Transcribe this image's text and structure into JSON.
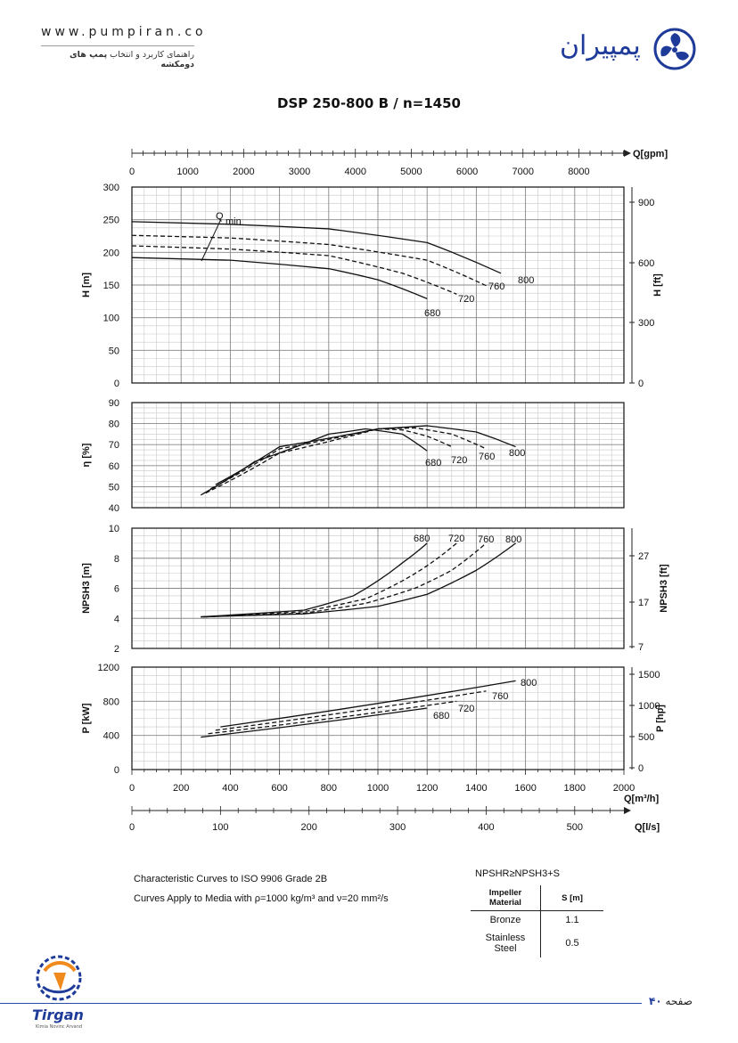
{
  "header": {
    "website": "www.pumpiran.co",
    "subtitle_prefix": "راهنمای کاربرد و انتخاب",
    "subtitle_bold": "پمپ های دومکشه",
    "brand": "پمپیران"
  },
  "title": "DSP 250-800 B / n=1450",
  "chart_data": {
    "type": "line",
    "qmin_label": "Q",
    "qmin_sub": "min",
    "x_axes": [
      {
        "label": "Q[gpm]",
        "ticks": [
          0,
          1000,
          2000,
          3000,
          4000,
          5000,
          6000,
          7000,
          8000
        ]
      },
      {
        "label": "Q[m³/h]",
        "ticks": [
          0,
          200,
          400,
          600,
          800,
          1000,
          1200,
          1400,
          1600,
          1800,
          2000
        ],
        "xlim": [
          0,
          2000
        ]
      },
      {
        "label": "Q[l/s]",
        "ticks": [
          0,
          100,
          200,
          300,
          400,
          500
        ]
      }
    ],
    "panels": [
      {
        "name": "head",
        "ylabel": "H [m]",
        "ylim": [
          0,
          300
        ],
        "yticks": [
          0,
          50,
          100,
          150,
          200,
          250,
          300
        ],
        "y2label": "H [ft]",
        "y2ticks": [
          0,
          300,
          600,
          900
        ],
        "series": [
          {
            "name": "800",
            "x": [
              0,
              400,
              800,
              1200,
              1500
            ],
            "y": [
              247,
              243,
              236,
              215,
              168
            ]
          },
          {
            "name": "760",
            "x": [
              0,
              400,
              800,
              1200,
              1440
            ],
            "y": [
              226,
              222,
              212,
              188,
              149
            ]
          },
          {
            "name": "720",
            "x": [
              0,
              400,
              800,
              1100,
              1320
            ],
            "y": [
              210,
              205,
              195,
              168,
              136
            ]
          },
          {
            "name": "680",
            "x": [
              0,
              400,
              800,
              1000,
              1200
            ],
            "y": [
              192,
              188,
              175,
              158,
              129
            ]
          }
        ]
      },
      {
        "name": "efficiency",
        "ylabel": "η [%]",
        "ylim": [
          40,
          90
        ],
        "yticks": [
          40,
          50,
          60,
          70,
          80,
          90
        ],
        "series": [
          {
            "name": "800",
            "x": [
              340,
              600,
              1000,
              1200,
              1400,
              1560
            ],
            "y": [
              51,
              69,
              77.5,
              79,
              76,
              69
            ]
          },
          {
            "name": "760",
            "x": [
              320,
              600,
              1000,
              1150,
              1300,
              1440
            ],
            "y": [
              49,
              68,
              77.5,
              78,
              75,
              68
            ]
          },
          {
            "name": "720",
            "x": [
              300,
              600,
              1000,
              1100,
              1200,
              1300
            ],
            "y": [
              47,
              66,
              77.5,
              77,
              74,
              69
            ]
          },
          {
            "name": "680",
            "x": [
              280,
              500,
              800,
              950,
              1100,
              1200
            ],
            "y": [
              46,
              62,
              75,
              77.5,
              75,
              67
            ]
          }
        ]
      },
      {
        "name": "npsh",
        "ylabel": "NPSH3 [m]",
        "ylim": [
          2,
          10
        ],
        "yticks": [
          2,
          4,
          6,
          8,
          10
        ],
        "y2label": "NPSH3 [ft]",
        "y2ticks": [
          7,
          17,
          27
        ],
        "series": [
          {
            "name": "800",
            "x": [
              280,
              700,
              1000,
              1200,
              1400,
              1560
            ],
            "y": [
              4.1,
              4.3,
              4.8,
              5.6,
              7.2,
              9
            ]
          },
          {
            "name": "760",
            "x": [
              290,
              700,
              950,
              1150,
              1300,
              1440
            ],
            "y": [
              4.1,
              4.35,
              5,
              6,
              7.2,
              9
            ]
          },
          {
            "name": "720",
            "x": [
              300,
              700,
              950,
              1100,
              1200,
              1320
            ],
            "y": [
              4.1,
              4.45,
              5.3,
              6.5,
              7.5,
              9
            ]
          },
          {
            "name": "680",
            "x": [
              280,
              700,
              900,
              1000,
              1100,
              1200
            ],
            "y": [
              4.1,
              4.55,
              5.5,
              6.5,
              7.7,
              9
            ]
          }
        ]
      },
      {
        "name": "power",
        "ylabel": "P [kW]",
        "ylim": [
          0,
          1200
        ],
        "yticks": [
          0,
          400,
          800,
          1200
        ],
        "y2label": "P [hp]",
        "y2ticks": [
          0,
          500,
          1000,
          1500
        ],
        "series": [
          {
            "name": "800",
            "x": [
              360,
              1560
            ],
            "y": [
              500,
              1040
            ]
          },
          {
            "name": "760",
            "x": [
              340,
              1440
            ],
            "y": [
              460,
              920
            ]
          },
          {
            "name": "720",
            "x": [
              310,
              1320
            ],
            "y": [
              420,
              800
            ]
          },
          {
            "name": "680",
            "x": [
              280,
              1200
            ],
            "y": [
              380,
              720
            ]
          }
        ]
      }
    ]
  },
  "notes": {
    "line1": "Characteristic Curves to ISO 9906 Grade 2B",
    "line2_pre": "Curves Apply to Media with ",
    "line2_rho": "ρ=1000 kg/m³",
    "line2_mid": " and ",
    "line2_nu": "ν=20 mm²/s"
  },
  "npsh_table": {
    "formula": "NPSHR≥NPSH3+S",
    "headers": [
      "Impeller Material",
      "S [m]"
    ],
    "rows": [
      {
        "material": "Bronze",
        "s": "1.1"
      },
      {
        "material": "Stainless Steel",
        "s": "0.5"
      }
    ]
  },
  "footer": {
    "page_word": "صفحه",
    "page_number": "۴۰",
    "partner_name": "Tirgan",
    "partner_sub": "Kimia Novinc Arvand"
  },
  "colors": {
    "brand_blue": "#1e3b9a",
    "line": "#111111",
    "grid": "#bdbdbd"
  }
}
